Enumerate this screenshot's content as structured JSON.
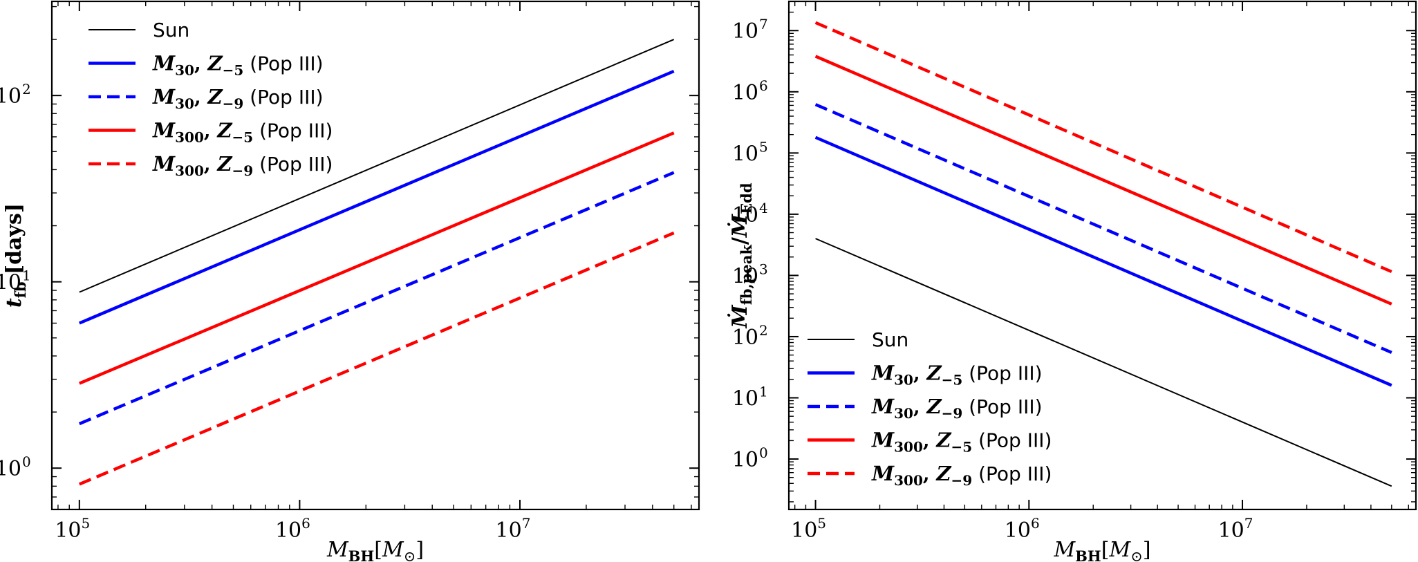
{
  "chart_data": [
    {
      "type": "line",
      "xscale": "log",
      "yscale": "log",
      "xlabel": {
        "main": "M",
        "sub": "BH",
        "bracket_open": "[",
        "unit": "M",
        "unit_sub": "⊙",
        "bracket_close": "]"
      },
      "ylabel": {
        "main": "t",
        "sub": "fb",
        "unit": "[days]"
      },
      "xlim": [
        75000,
        65000000
      ],
      "ylim": [
        0.6,
        320
      ],
      "xticks": [
        {
          "base": "10",
          "exp": "5",
          "value": 100000
        },
        {
          "base": "10",
          "exp": "6",
          "value": 1000000
        },
        {
          "base": "10",
          "exp": "7",
          "value": 10000000
        }
      ],
      "yticks": [
        {
          "base": "10",
          "exp": "0",
          "value": 1
        },
        {
          "base": "10",
          "exp": "1",
          "value": 10
        },
        {
          "base": "10",
          "exp": "2",
          "value": 100
        }
      ],
      "legend_position": "upper left",
      "x": [
        100000,
        50000000
      ],
      "series": [
        {
          "name": "Sun",
          "color": "#000000",
          "style": "solid",
          "weight": "thin",
          "values": [
            8.8,
            200
          ]
        },
        {
          "name": "M30, Z−5 (Pop III)",
          "color": "#0000ff",
          "style": "solid",
          "weight": "thick",
          "values": [
            6.0,
            135
          ]
        },
        {
          "name": "M30, Z−9 (Pop III)",
          "color": "#0000ff",
          "style": "dashed",
          "weight": "thick",
          "values": [
            1.73,
            38.6
          ]
        },
        {
          "name": "M300, Z−5 (Pop III)",
          "color": "#ff0000",
          "style": "solid",
          "weight": "thick",
          "values": [
            2.85,
            63
          ]
        },
        {
          "name": "M300, Z−9 (Pop III)",
          "color": "#ff0000",
          "style": "dashed",
          "weight": "thick",
          "values": [
            0.82,
            18.3
          ]
        }
      ]
    },
    {
      "type": "line",
      "xscale": "log",
      "yscale": "log",
      "xlabel": {
        "main": "M",
        "sub": "BH",
        "bracket_open": "[",
        "unit": "M",
        "unit_sub": "⊙",
        "bracket_close": "]"
      },
      "ylabel": {
        "main": "Ṁ",
        "sub": "fb,peak",
        "sep": "/",
        "main2": "Ṁ",
        "sub2": "Edd"
      },
      "xlim": [
        75000,
        65000000
      ],
      "ylim": [
        0.15,
        30000000
      ],
      "xticks": [
        {
          "base": "10",
          "exp": "5",
          "value": 100000
        },
        {
          "base": "10",
          "exp": "6",
          "value": 1000000
        },
        {
          "base": "10",
          "exp": "7",
          "value": 10000000
        }
      ],
      "yticks": [
        {
          "base": "10",
          "exp": "0",
          "value": 1
        },
        {
          "base": "10",
          "exp": "1",
          "value": 10
        },
        {
          "base": "10",
          "exp": "2",
          "value": 100
        },
        {
          "base": "10",
          "exp": "3",
          "value": 1000
        },
        {
          "base": "10",
          "exp": "4",
          "value": 10000
        },
        {
          "base": "10",
          "exp": "5",
          "value": 100000
        },
        {
          "base": "10",
          "exp": "6",
          "value": 1000000
        },
        {
          "base": "10",
          "exp": "7",
          "value": 10000000
        }
      ],
      "legend_position": "lower left",
      "x": [
        100000,
        50000000
      ],
      "series": [
        {
          "name": "Sun",
          "color": "#000000",
          "style": "solid",
          "weight": "thin",
          "values": [
            4000,
            0.36
          ]
        },
        {
          "name": "M30, Z−5 (Pop III)",
          "color": "#0000ff",
          "style": "solid",
          "weight": "thick",
          "values": [
            180000,
            16
          ]
        },
        {
          "name": "M30, Z−9 (Pop III)",
          "color": "#0000ff",
          "style": "dashed",
          "weight": "thick",
          "values": [
            620000,
            55
          ]
        },
        {
          "name": "M300, Z−5 (Pop III)",
          "color": "#ff0000",
          "style": "solid",
          "weight": "thick",
          "values": [
            3800000,
            340
          ]
        },
        {
          "name": "M300, Z−9 (Pop III)",
          "color": "#ff0000",
          "style": "dashed",
          "weight": "thick",
          "values": [
            13500000,
            1150
          ]
        }
      ]
    }
  ],
  "legend": {
    "entries": [
      {
        "label": "Sun",
        "math": false
      },
      {
        "m": "M",
        "m_sub": "30",
        "z": "Z",
        "z_sub": "−5",
        "suffix": " (Pop III)",
        "math": true
      },
      {
        "m": "M",
        "m_sub": "30",
        "z": "Z",
        "z_sub": "−9",
        "suffix": " (Pop III)",
        "math": true
      },
      {
        "m": "M",
        "m_sub": "300",
        "z": "Z",
        "z_sub": "−5",
        "suffix": " (Pop III)",
        "math": true
      },
      {
        "m": "M",
        "m_sub": "300",
        "z": "Z",
        "z_sub": "−9",
        "suffix": " (Pop III)",
        "math": true
      }
    ]
  }
}
